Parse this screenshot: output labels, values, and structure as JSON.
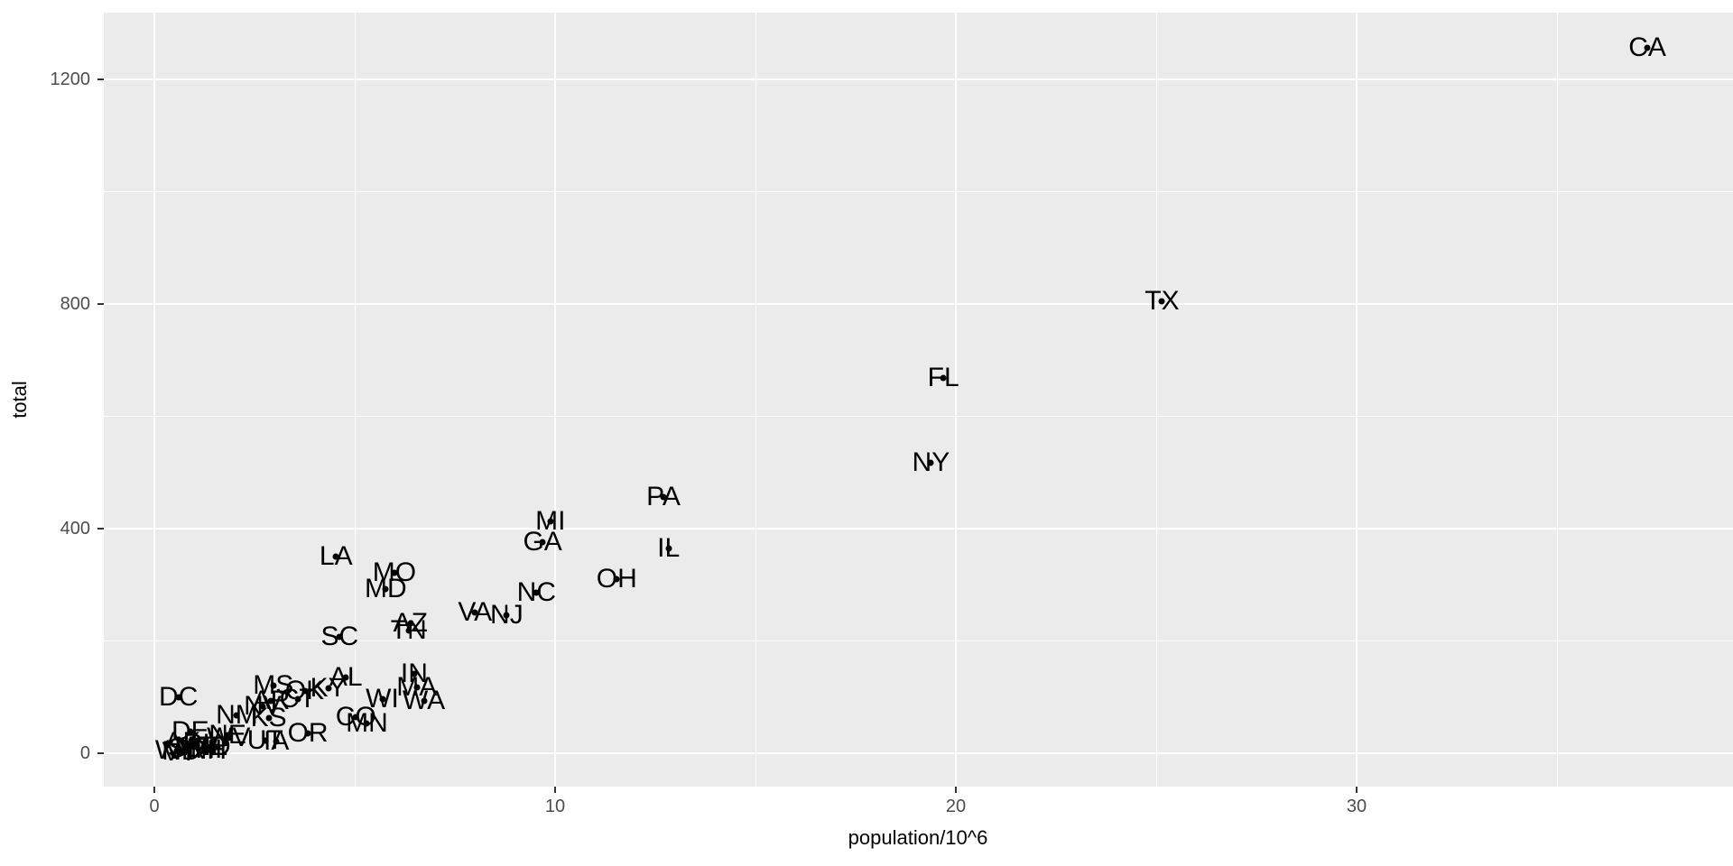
{
  "chart_data": {
    "type": "scatter",
    "title": "",
    "xlabel": "population/10^6",
    "ylabel": "total",
    "x_ticks": [
      0,
      10,
      20,
      30
    ],
    "x_minor_ticks": [
      5,
      15,
      25,
      35
    ],
    "y_ticks": [
      0,
      400,
      800,
      1200
    ],
    "y_minor_ticks": [
      200,
      600,
      1000
    ],
    "xlim": [
      -1.27,
      39.4
    ],
    "ylim": [
      -61,
      1320
    ],
    "grid": "on",
    "legend": "none",
    "plot_bg_color": "#EBEBEB",
    "grid_color": "#FFFFFF",
    "tick_color": "#333333",
    "tick_label_color": "#4D4D4D",
    "point_color": "#000000",
    "label_color": "#000000",
    "series": [
      {
        "name": "state-points",
        "points": [
          {
            "label": "AL",
            "x": 4.78,
            "y": 135
          },
          {
            "label": "AK",
            "x": 0.71,
            "y": 19
          },
          {
            "label": "AZ",
            "x": 6.392,
            "y": 232
          },
          {
            "label": "AR",
            "x": 2.916,
            "y": 93
          },
          {
            "label": "CA",
            "x": 37.254,
            "y": 1257
          },
          {
            "label": "CO",
            "x": 5.029,
            "y": 65
          },
          {
            "label": "CT",
            "x": 3.574,
            "y": 97
          },
          {
            "label": "DE",
            "x": 0.898,
            "y": 38
          },
          {
            "label": "DC",
            "x": 0.602,
            "y": 99
          },
          {
            "label": "FL",
            "x": 19.688,
            "y": 669
          },
          {
            "label": "GA",
            "x": 9.688,
            "y": 376
          },
          {
            "label": "HI",
            "x": 1.36,
            "y": 7
          },
          {
            "label": "ID",
            "x": 1.568,
            "y": 12
          },
          {
            "label": "IL",
            "x": 12.831,
            "y": 364
          },
          {
            "label": "IN",
            "x": 6.484,
            "y": 142
          },
          {
            "label": "IA",
            "x": 3.046,
            "y": 21
          },
          {
            "label": "KS",
            "x": 2.853,
            "y": 63
          },
          {
            "label": "KY",
            "x": 4.339,
            "y": 116
          },
          {
            "label": "LA",
            "x": 4.533,
            "y": 351
          },
          {
            "label": "ME",
            "x": 1.328,
            "y": 11
          },
          {
            "label": "MD",
            "x": 5.774,
            "y": 293
          },
          {
            "label": "MA",
            "x": 6.548,
            "y": 118
          },
          {
            "label": "MI",
            "x": 9.884,
            "y": 413
          },
          {
            "label": "MN",
            "x": 5.304,
            "y": 53
          },
          {
            "label": "MS",
            "x": 2.967,
            "y": 120
          },
          {
            "label": "MO",
            "x": 5.989,
            "y": 321
          },
          {
            "label": "MT",
            "x": 0.989,
            "y": 12
          },
          {
            "label": "NE",
            "x": 1.826,
            "y": 32
          },
          {
            "label": "NV",
            "x": 2.701,
            "y": 84
          },
          {
            "label": "NH",
            "x": 1.316,
            "y": 5
          },
          {
            "label": "NJ",
            "x": 8.792,
            "y": 246
          },
          {
            "label": "NM",
            "x": 2.059,
            "y": 67
          },
          {
            "label": "NY",
            "x": 19.378,
            "y": 517
          },
          {
            "label": "NC",
            "x": 9.535,
            "y": 286
          },
          {
            "label": "ND",
            "x": 0.673,
            "y": 4
          },
          {
            "label": "OH",
            "x": 11.537,
            "y": 310
          },
          {
            "label": "OK",
            "x": 3.751,
            "y": 111
          },
          {
            "label": "OR",
            "x": 3.831,
            "y": 36
          },
          {
            "label": "PA",
            "x": 12.702,
            "y": 457
          },
          {
            "label": "RI",
            "x": 1.053,
            "y": 16
          },
          {
            "label": "SC",
            "x": 4.625,
            "y": 207
          },
          {
            "label": "SD",
            "x": 0.814,
            "y": 8
          },
          {
            "label": "TN",
            "x": 6.346,
            "y": 219
          },
          {
            "label": "TX",
            "x": 25.146,
            "y": 805
          },
          {
            "label": "UT",
            "x": 2.764,
            "y": 22
          },
          {
            "label": "VT",
            "x": 0.626,
            "y": 2
          },
          {
            "label": "VA",
            "x": 8.001,
            "y": 250
          },
          {
            "label": "WA",
            "x": 6.724,
            "y": 93
          },
          {
            "label": "WV",
            "x": 1.853,
            "y": 27
          },
          {
            "label": "WI",
            "x": 5.687,
            "y": 97
          },
          {
            "label": "WY",
            "x": 0.564,
            "y": 5
          }
        ]
      }
    ]
  }
}
